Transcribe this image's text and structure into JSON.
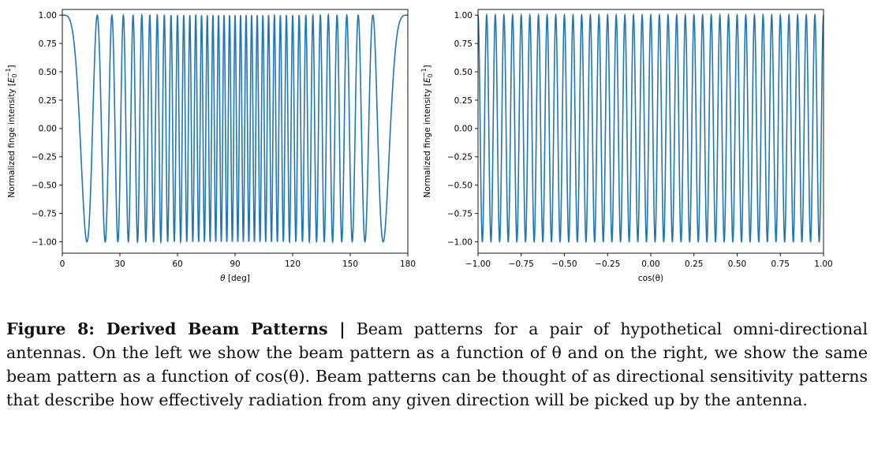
{
  "chart_data": [
    {
      "type": "line",
      "xlabel": "θ [deg]",
      "ylabel": "Normalized finge intensity [E0^-1]",
      "xlim": [
        0,
        180
      ],
      "ylim": [
        -1.1,
        1.05
      ],
      "xticks": [
        "0",
        "30",
        "60",
        "90",
        "120",
        "150",
        "180"
      ],
      "yticks": [
        "1.00",
        "0.75",
        "0.50",
        "0.25",
        "0.00",
        "−0.25",
        "−0.50",
        "−0.75",
        "−1.00"
      ],
      "series": [
        {
          "function": "cos(2π·20·cos θ)",
          "color": "#1f77b4",
          "x_range": [
            0,
            180
          ],
          "y_range": [
            -1,
            1
          ]
        }
      ]
    },
    {
      "type": "line",
      "xlabel": "cos(θ)",
      "ylabel": "Normalized finge intensity [E0^-1]",
      "xlim": [
        -1,
        1
      ],
      "ylim": [
        -1.1,
        1.05
      ],
      "xticks": [
        "−1.00",
        "−0.75",
        "−0.50",
        "−0.25",
        "0.00",
        "0.25",
        "0.50",
        "0.75",
        "1.00"
      ],
      "yticks": [
        "1.00",
        "0.75",
        "0.50",
        "0.25",
        "0.00",
        "−0.25",
        "−0.50",
        "−0.75",
        "−1.00"
      ],
      "series": [
        {
          "function": "cos(2π·20·x)",
          "color": "#1f77b4",
          "x_range": [
            -1,
            1
          ],
          "y_range": [
            -1,
            1
          ]
        }
      ]
    }
  ],
  "caption": {
    "label": "Figure 8: Derived Beam Patterns |",
    "text": "Beam patterns for a pair of hypothetical omni-directional antennas. On the left we show the beam pattern as a function of θ and on the right, we show the same beam pattern as a function of cos(θ). Beam patterns can be thought of as directional sensitivity patterns that describe how effectively radiation from any given direction will be picked up by the antenna."
  }
}
